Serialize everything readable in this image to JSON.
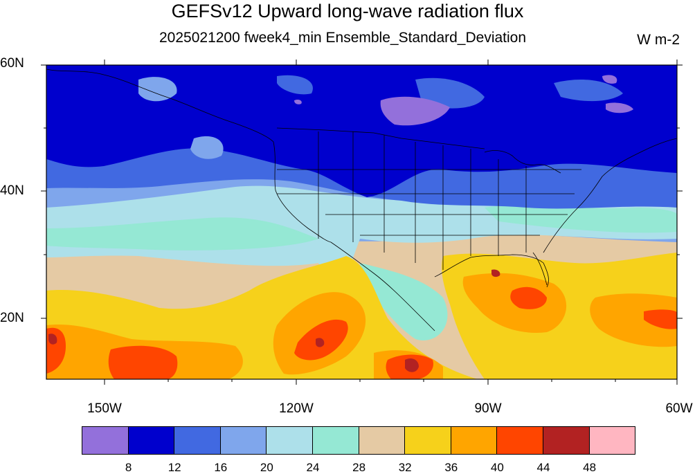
{
  "title": "GEFSv12 Upward long-wave radiation flux",
  "subtitle": "2025021200 fweek4_min Ensemble_Standard_Deviation",
  "units": "W m-2",
  "lat_labels": [
    "60N",
    "40N",
    "20N"
  ],
  "lon_labels": [
    "150W",
    "120W",
    "90W",
    "60W"
  ],
  "colorbar": {
    "colors": [
      "#9370DB",
      "#0000CD",
      "#4169E1",
      "#7FA6EC",
      "#ADE0EA",
      "#95E8D4",
      "#E5CAA4",
      "#F6D11B",
      "#FFA500",
      "#FF4500",
      "#B22222",
      "#FFB6C1"
    ],
    "labels": [
      "8",
      "12",
      "16",
      "20",
      "24",
      "28",
      "32",
      "36",
      "40",
      "44",
      "48"
    ]
  },
  "map": {
    "lat_range": [
      10,
      60
    ],
    "lon_range": [
      -159,
      -60
    ],
    "projection": "cylindrical equidistant"
  }
}
